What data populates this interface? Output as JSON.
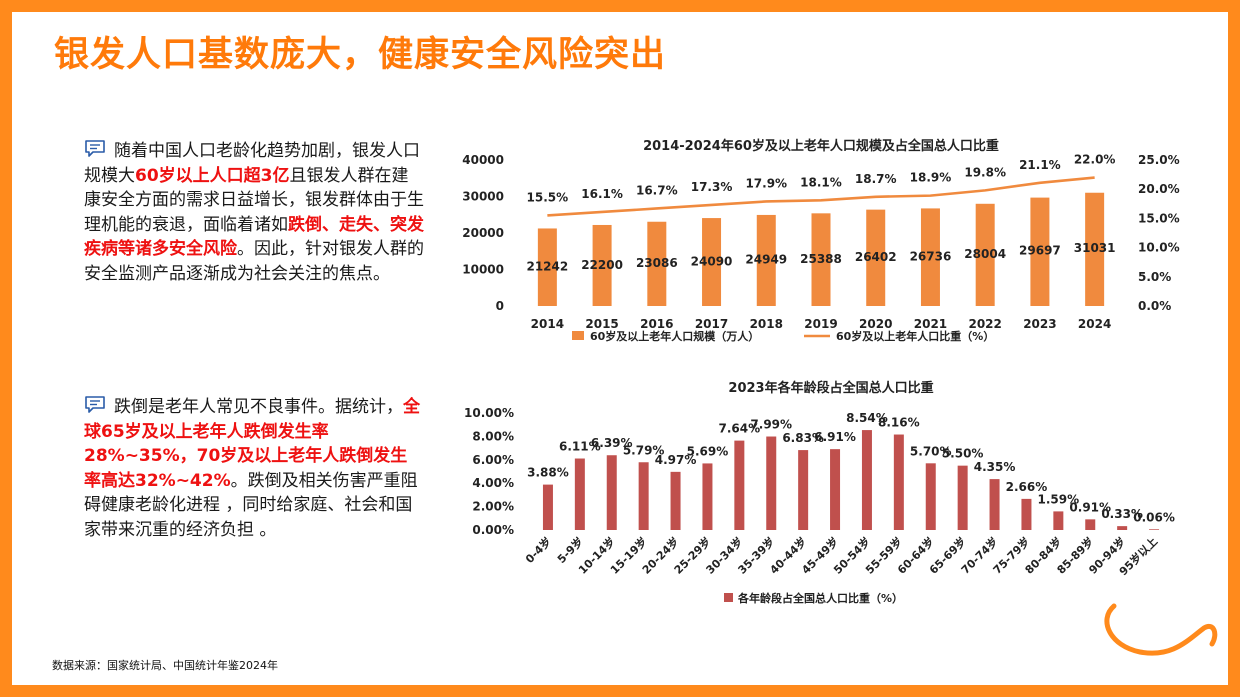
{
  "title": "银发人口基数庞大，健康安全风险突出",
  "para1": {
    "icon": "chat-icon",
    "segments": [
      {
        "t": "随着中国人口老龄化趋势加剧，银发人口规模大",
        "hl": false
      },
      {
        "t": "60岁以上人口超3亿",
        "hl": true
      },
      {
        "t": "且银发人群在建康安全方面的需求日益增长，银发群体由于生理机能的衰退，面临着诸如",
        "hl": false
      },
      {
        "t": "跌倒、走失、突发疾病等诸多安全风险",
        "hl": true
      },
      {
        "t": "。因此，针对银发人群的安全监测产品逐渐成为社会关注的焦点。",
        "hl": false
      }
    ]
  },
  "para2": {
    "icon": "chat-icon",
    "segments": [
      {
        "t": "跌倒是老年人常见不良事件。据统计，",
        "hl": false
      },
      {
        "t": "全球65岁及以上老年人跌倒发生率28%~35%，70岁及以上老年人跌倒发生率高达32%~42%",
        "hl": true
      },
      {
        "t": "。跌倒及相关伤害严重阻碍健康老龄化进程 ，同时给家庭、社会和国家带来沉重的经济负担 。",
        "hl": false
      }
    ]
  },
  "source": "数据来源：国家统计局、中国统计年鉴2024年",
  "chart_data": [
    {
      "type": "bar",
      "title": "2014-2024年60岁及以上老年人口规模及占全国总人口比重",
      "categories": [
        "2014",
        "2015",
        "2016",
        "2017",
        "2018",
        "2019",
        "2020",
        "2021",
        "2022",
        "2023",
        "2024"
      ],
      "series": [
        {
          "name": "60岁及以上老年人口规模（万人）",
          "type": "bar",
          "axis": "left",
          "color": "#f08a3e",
          "values": [
            21242,
            22200,
            23086,
            24090,
            24949,
            25388,
            26402,
            26736,
            28004,
            29697,
            31031
          ]
        },
        {
          "name": "60岁及以上老年人口比重（%）",
          "type": "line",
          "axis": "right",
          "color": "#f08a3e",
          "values": [
            15.5,
            16.1,
            16.7,
            17.3,
            17.9,
            18.1,
            18.7,
            18.9,
            19.8,
            21.1,
            22.0
          ]
        }
      ],
      "data_labels_bar": [
        "21242",
        "22200",
        "23086",
        "24090",
        "24949",
        "25388",
        "26402",
        "26736",
        "28004",
        "29697",
        "31031"
      ],
      "data_labels_line": [
        "15.5%",
        "16.1%",
        "16.7%",
        "17.3%",
        "17.9%",
        "18.1%",
        "18.7%",
        "18.9%",
        "19.8%",
        "21.1%",
        "22.0%"
      ],
      "ylim_left": [
        0,
        40000
      ],
      "yticks_left": [
        "0",
        "10000",
        "20000",
        "30000",
        "40000"
      ],
      "ylim_right": [
        0,
        25
      ],
      "yticks_right": [
        "0.0%",
        "5.0%",
        "10.0%",
        "15.0%",
        "20.0%",
        "25.0%"
      ],
      "grid": false,
      "legend": "bottom"
    },
    {
      "type": "bar",
      "title": "2023年各年龄段占全国总人口比重",
      "categories": [
        "0-4岁",
        "5-9岁",
        "10-14岁",
        "15-19岁",
        "20-24岁",
        "25-29岁",
        "30-34岁",
        "35-39岁",
        "40-44岁",
        "45-49岁",
        "50-54岁",
        "55-59岁",
        "60-64岁",
        "65-69岁",
        "70-74岁",
        "75-79岁",
        "80-84岁",
        "85-89岁",
        "90-94岁",
        "95岁以上"
      ],
      "series": [
        {
          "name": "各年龄段占全国总人口比重（%）",
          "color": "#c0504d",
          "values": [
            3.88,
            6.11,
            6.39,
            5.79,
            4.97,
            5.69,
            7.64,
            7.99,
            6.83,
            6.91,
            8.54,
            8.16,
            5.7,
            5.5,
            4.35,
            2.66,
            1.59,
            0.91,
            0.33,
            0.06
          ]
        }
      ],
      "data_labels": [
        "3.88%",
        "6.11%",
        "6.39%",
        "5.79%",
        "4.97%",
        "5.69%",
        "7.64%",
        "7.99%",
        "6.83%",
        "6.91%",
        "8.54%",
        "8.16%",
        "5.70%",
        "5.50%",
        "4.35%",
        "2.66%",
        "1.59%",
        "0.91%",
        "0.33%",
        "0.06%"
      ],
      "ylim": [
        0,
        10
      ],
      "yticks": [
        "0.00%",
        "2.00%",
        "4.00%",
        "6.00%",
        "8.00%",
        "10.00%"
      ],
      "grid": false,
      "legend": "bottom"
    }
  ]
}
